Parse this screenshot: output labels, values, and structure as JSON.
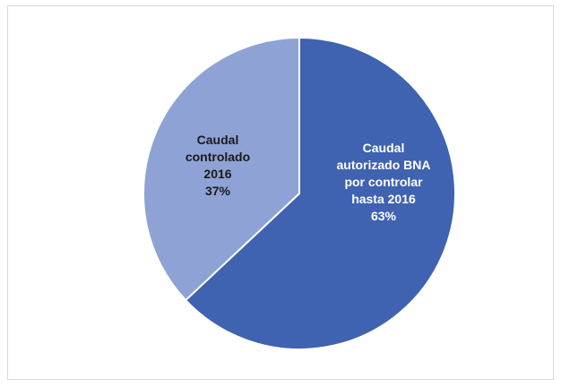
{
  "chart_data": {
    "type": "pie",
    "title": "",
    "start_angle_deg": 0,
    "direction": "clockwise",
    "slices": [
      {
        "label_lines": [
          "Caudal",
          "autorizado BNA",
          "por controlar",
          "hasta 2016"
        ],
        "percent_label": "63%",
        "value": 63,
        "color": "#3f62b1",
        "label_color": "#ffffff"
      },
      {
        "label_lines": [
          "Caudal",
          "controlado",
          "2016"
        ],
        "percent_label": "37%",
        "value": 37,
        "color": "#8ea2d5",
        "label_color": "#1a1a1a"
      }
    ],
    "legend": "none"
  },
  "colors": {
    "border": "#d9d9d9",
    "slice_edge": "#ffffff"
  }
}
